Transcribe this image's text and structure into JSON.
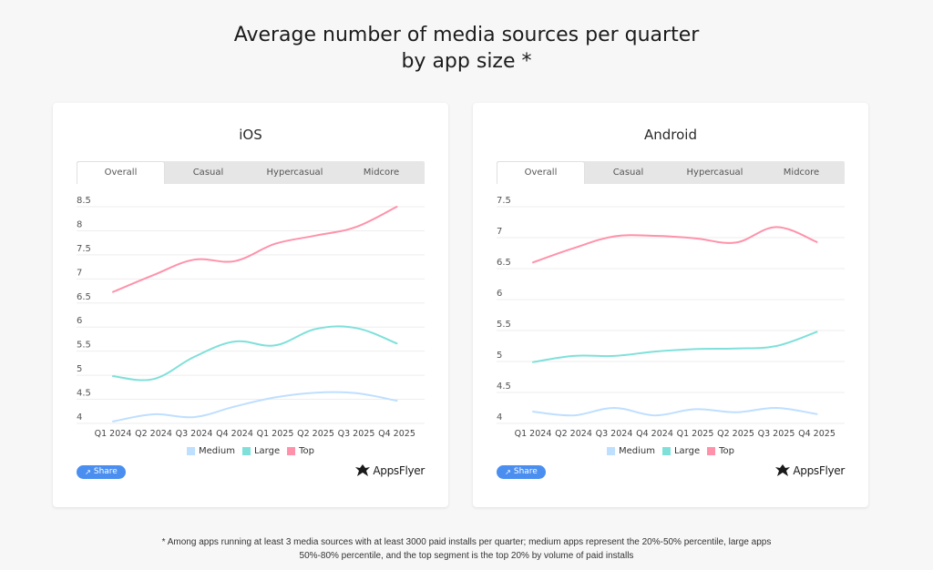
{
  "page": {
    "title_line1": "Average number of media sources per quarter",
    "title_line2": "by app size *",
    "footnote_line1": "* Among apps running at least 3 media sources with at least 3000 paid installs per quarter; medium apps represent the 20%-50% percentile, large apps",
    "footnote_line2": "50%-80% percentile, and the top segment is the top 20% by volume of paid installs"
  },
  "tabs": [
    "Overall",
    "Casual",
    "Hypercasual",
    "Midcore"
  ],
  "active_tab": "Overall",
  "share_label": "Share",
  "logo_text": "AppsFlyer",
  "colors": {
    "Medium": "#bfdfff",
    "Large": "#7fe0da",
    "Top": "#ff92aa",
    "grid": "#eeeeee",
    "share": "#4a8ff0"
  },
  "chart_data": [
    {
      "type": "line",
      "title": "iOS",
      "xlabel": "",
      "ylabel": "",
      "categories": [
        "Q1 2024",
        "Q2 2024",
        "Q3 2024",
        "Q4 2024",
        "Q1 2025",
        "Q2 2025",
        "Q3 2025",
        "Q4 2025"
      ],
      "ylim": [
        4,
        8.5
      ],
      "yticks": [
        4,
        4.5,
        5,
        5.5,
        6,
        6.5,
        7,
        7.5,
        8,
        8.5
      ],
      "ytick_labels": [
        "4",
        "4.5",
        "5",
        "5.5",
        "6",
        "6.5",
        "7",
        "7.5",
        "8",
        "8.5"
      ],
      "grid": true,
      "legend": "bottom-center",
      "series": [
        {
          "name": "Medium",
          "values": [
            4.04,
            4.19,
            4.13,
            4.35,
            4.54,
            4.64,
            4.63,
            4.47
          ]
        },
        {
          "name": "Large",
          "values": [
            4.98,
            4.92,
            5.38,
            5.7,
            5.62,
            5.96,
            5.98,
            5.66
          ]
        },
        {
          "name": "Top",
          "values": [
            6.73,
            7.08,
            7.4,
            7.37,
            7.73,
            7.9,
            8.08,
            8.5
          ]
        }
      ]
    },
    {
      "type": "line",
      "title": "Android",
      "xlabel": "",
      "ylabel": "",
      "categories": [
        "Q1 2024",
        "Q2 2024",
        "Q3 2024",
        "Q4 2024",
        "Q1 2025",
        "Q2 2025",
        "Q3 2025",
        "Q4 2025"
      ],
      "ylim": [
        4,
        7.5
      ],
      "yticks": [
        4,
        4.5,
        5,
        5.5,
        6,
        6.5,
        7,
        7.5
      ],
      "ytick_labels": [
        "4",
        "4.5",
        "5",
        "5.5",
        "6",
        "6.5",
        "7",
        "7.5"
      ],
      "grid": true,
      "legend": "bottom-center",
      "series": [
        {
          "name": "Medium",
          "values": [
            4.19,
            4.13,
            4.25,
            4.13,
            4.23,
            4.18,
            4.25,
            4.15
          ]
        },
        {
          "name": "Large",
          "values": [
            4.99,
            5.09,
            5.09,
            5.16,
            5.2,
            5.21,
            5.25,
            5.48
          ]
        },
        {
          "name": "Top",
          "values": [
            6.6,
            6.83,
            7.02,
            7.03,
            6.99,
            6.92,
            7.17,
            6.93
          ]
        }
      ]
    }
  ]
}
